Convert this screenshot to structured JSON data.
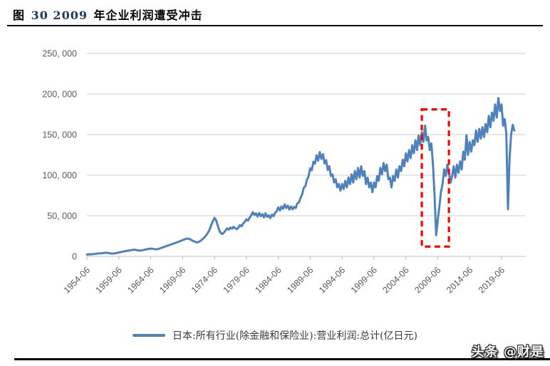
{
  "title": {
    "part1": "图",
    "part2": "30 2009",
    "part3": "年企业利润遭受冲击"
  },
  "legend": {
    "label": "日本:所有行业(除金融和保险业):营业利润:总计(亿日元)"
  },
  "watermark": "头条 @财是",
  "colors": {
    "line": "#4F81BD",
    "highlight_box": "#FF0000",
    "grid": "#D6D6D6",
    "axis_text": "#595959",
    "title_number": "#1F3864"
  },
  "chart_data": {
    "type": "line",
    "series_name": "日本:所有行业(除金融和保险业):营业利润:总计(亿日元)",
    "start": "1954-06",
    "frequency": "quarterly",
    "unit": "亿日元",
    "ylim": [
      0,
      250000
    ],
    "y_ticks": [
      0,
      50000,
      100000,
      150000,
      200000,
      250000
    ],
    "y_tick_labels": [
      "0",
      "50, 000",
      "100, 000",
      "150, 000",
      "200, 000",
      "250, 000"
    ],
    "x_tick_labels": [
      "1954-06",
      "1959-06",
      "1964-06",
      "1969-06",
      "1974-06",
      "1979-06",
      "1984-06",
      "1989-06",
      "1994-06",
      "1999-06",
      "2004-06",
      "2009-06",
      "2014-06",
      "2019-06"
    ],
    "grid": true,
    "legend_position": "bottom",
    "annotation": "red dashed box highlighting the 2009 profit collapse",
    "highlight_box": {
      "from": "2006-12",
      "to": "2011-03",
      "value_range": [
        12000,
        181000
      ]
    },
    "values": [
      2200,
      2500,
      2400,
      2600,
      2800,
      3000,
      3300,
      3500,
      3800,
      3600,
      4000,
      4300,
      4500,
      4200,
      3900,
      3600,
      3400,
      3600,
      3900,
      4300,
      4700,
      5100,
      5600,
      6000,
      6400,
      6700,
      7100,
      7400,
      7800,
      8000,
      8200,
      7800,
      7400,
      7000,
      7200,
      7600,
      8100,
      8500,
      8900,
      9300,
      9600,
      9400,
      9000,
      8600,
      8800,
      9300,
      9900,
      10600,
      11300,
      12000,
      12700,
      13400,
      14100,
      14800,
      15500,
      16200,
      16900,
      17600,
      18400,
      19200,
      20000,
      20700,
      21400,
      22000,
      21500,
      20600,
      19600,
      18600,
      17800,
      17200,
      17600,
      18800,
      20300,
      22000,
      24000,
      26500,
      29500,
      33500,
      38500,
      43500,
      47500,
      44500,
      38000,
      32000,
      28500,
      27500,
      29500,
      32000,
      34500,
      33000,
      35500,
      34000,
      36500,
      34500,
      33500,
      35500,
      38500,
      37000,
      40500,
      42500,
      45500,
      44000,
      47500,
      50500,
      54500,
      51000,
      53000,
      49000,
      53500,
      49500,
      52000,
      48000,
      53000,
      48500,
      50500,
      47000,
      51500,
      49500,
      53500,
      55500,
      60500,
      56500,
      61500,
      58500,
      64000,
      59500,
      62500,
      57500,
      61500,
      58000,
      61000,
      59500,
      65500,
      66500,
      72500,
      76500,
      84500,
      86500,
      94500,
      98500,
      108500,
      106000,
      116500,
      114000,
      124500,
      118000,
      128500,
      120000,
      126000,
      114500,
      118500,
      106500,
      111000,
      99000,
      101000,
      91000,
      95000,
      85000,
      89000,
      81000,
      89000,
      83000,
      93000,
      85000,
      97000,
      89000,
      101000,
      91000,
      105000,
      95000,
      109000,
      97000,
      111000,
      99000,
      105000,
      89000,
      97000,
      85000,
      91000,
      79000,
      91000,
      85000,
      99000,
      93000,
      109000,
      101000,
      115000,
      105000,
      113000,
      95000,
      97000,
      85000,
      99000,
      93000,
      107000,
      97000,
      111000,
      105000,
      119000,
      111000,
      127000,
      117000,
      131000,
      121000,
      137000,
      127000,
      143000,
      131000,
      149000,
      137000,
      153000,
      141000,
      161000,
      143000,
      147000,
      131000,
      139000,
      113000,
      75000,
      26000,
      45000,
      61000,
      79000,
      89000,
      107000,
      99000,
      113000,
      103000,
      91000,
      99000,
      111000,
      97000,
      113000,
      103000,
      117000,
      107000,
      129000,
      119000,
      149000,
      125000,
      141000,
      129000,
      143000,
      137000,
      155000,
      141000,
      157000,
      145000,
      159000,
      147000,
      163000,
      153000,
      173000,
      159000,
      177000,
      167000,
      187000,
      171000,
      195000,
      179000,
      187000,
      161000,
      169000,
      151000,
      58000,
      120000,
      150000,
      162000,
      155000
    ]
  }
}
